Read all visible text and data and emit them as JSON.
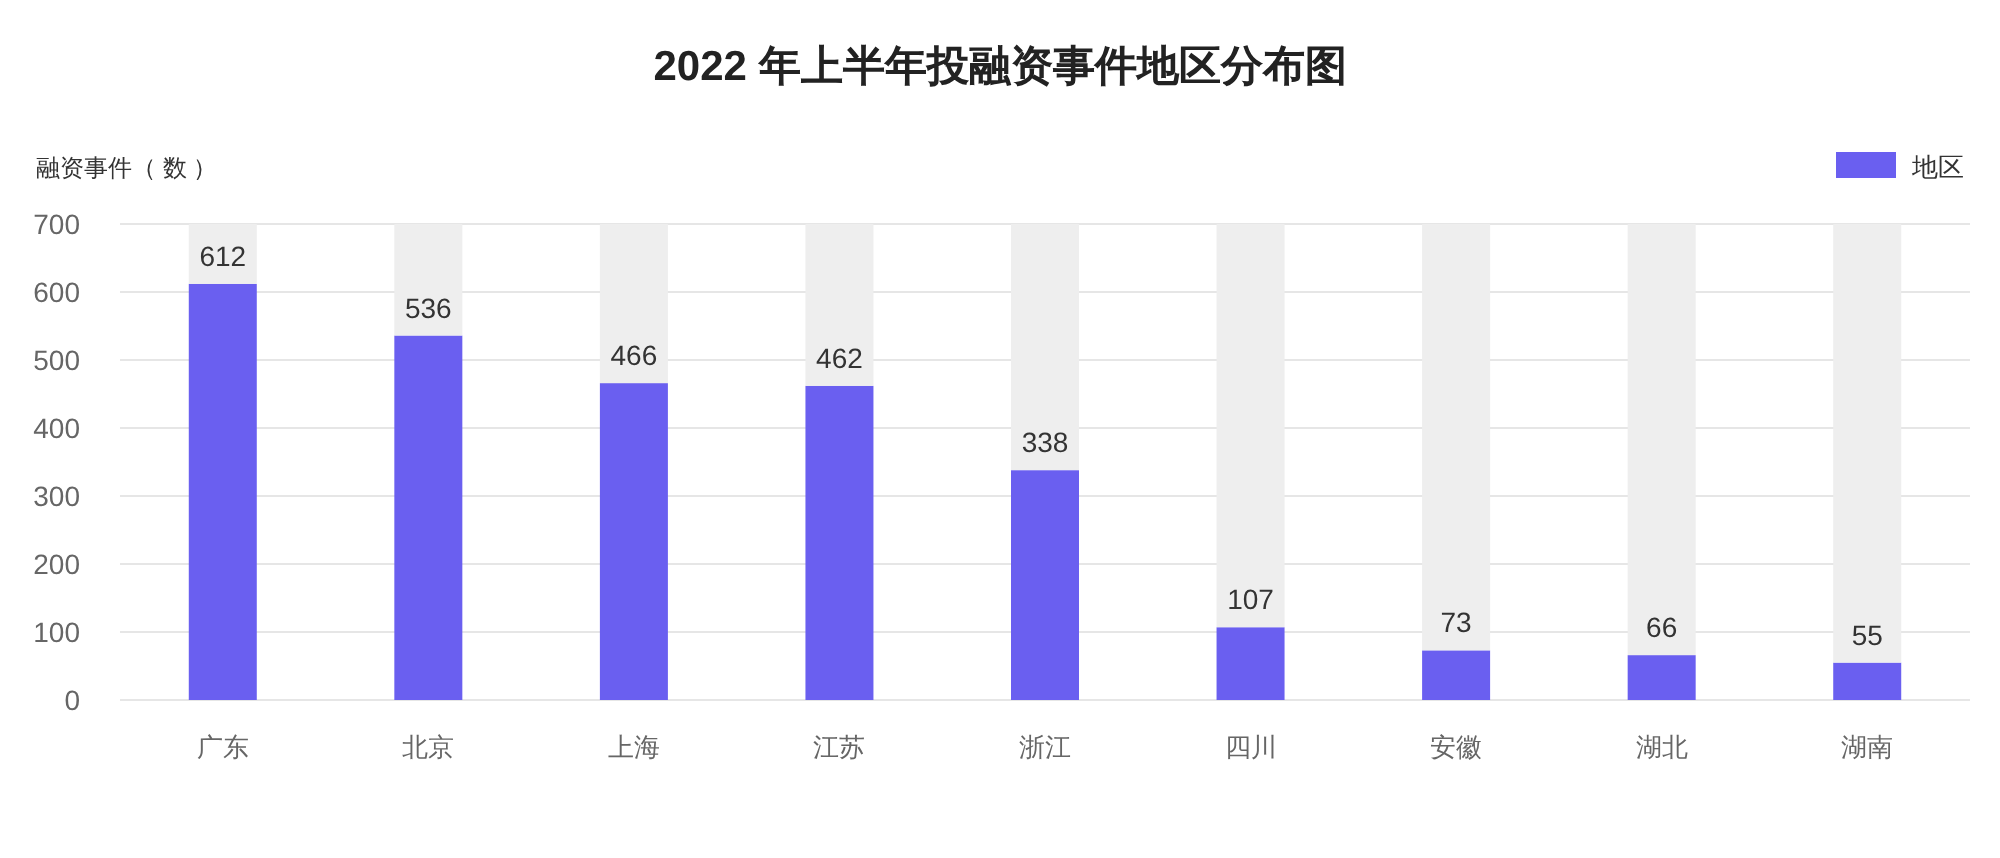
{
  "chart_data": {
    "type": "bar",
    "title": "2022 年上半年投融资事件地区分布图",
    "ylabel": "融资事件（ 数 ）",
    "categories": [
      "广东",
      "北京",
      "上海",
      "江苏",
      "浙江",
      "四川",
      "安徽",
      "湖北",
      "湖南"
    ],
    "series": [
      {
        "name": "地区",
        "color": "#6a5ff0",
        "values": [
          612,
          536,
          466,
          462,
          338,
          107,
          73,
          66,
          55
        ],
        "value_labels": [
          "612",
          "536",
          "466",
          "462",
          "338",
          "107",
          "73",
          "66",
          "55"
        ]
      },
      {
        "color": "#eeeeee",
        "values": [
          88,
          164,
          234,
          238,
          362,
          593,
          627,
          634,
          645
        ]
      }
    ],
    "stacked": true,
    "ylim": [
      0,
      700
    ],
    "yticks": [
      0,
      100,
      200,
      300,
      400,
      500,
      600,
      700
    ],
    "grid": "y",
    "legend": "top right"
  }
}
